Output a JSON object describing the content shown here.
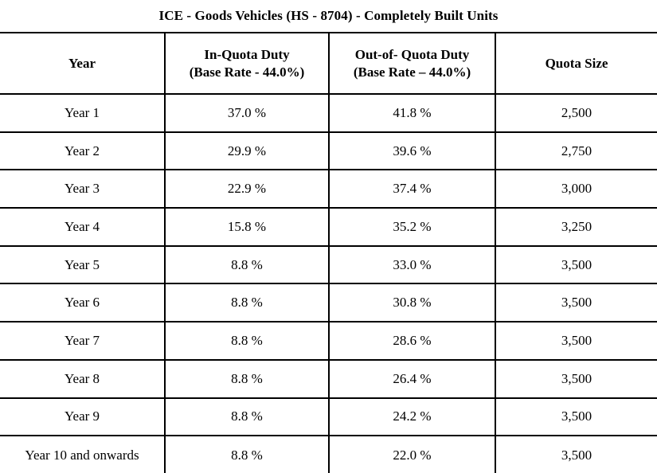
{
  "title": "ICE - Goods Vehicles (HS - 8704) - Completely Built Units",
  "table": {
    "columns": [
      {
        "label": "Year",
        "sublabel": ""
      },
      {
        "label": "In-Quota Duty",
        "sublabel": "(Base Rate - 44.0%)"
      },
      {
        "label": "Out-of- Quota Duty",
        "sublabel": "(Base Rate – 44.0%)"
      },
      {
        "label": "Quota Size",
        "sublabel": ""
      }
    ],
    "rows": [
      {
        "year": "Year 1",
        "in_quota_duty": "37.0 %",
        "out_of_quota_duty": "41.8 %",
        "quota_size": "2,500"
      },
      {
        "year": "Year 2",
        "in_quota_duty": "29.9 %",
        "out_of_quota_duty": "39.6 %",
        "quota_size": "2,750"
      },
      {
        "year": "Year 3",
        "in_quota_duty": "22.9 %",
        "out_of_quota_duty": "37.4 %",
        "quota_size": "3,000"
      },
      {
        "year": "Year 4",
        "in_quota_duty": "15.8 %",
        "out_of_quota_duty": "35.2 %",
        "quota_size": "3,250"
      },
      {
        "year": "Year 5",
        "in_quota_duty": "8.8 %",
        "out_of_quota_duty": "33.0 %",
        "quota_size": "3,500"
      },
      {
        "year": "Year 6",
        "in_quota_duty": "8.8 %",
        "out_of_quota_duty": "30.8 %",
        "quota_size": "3,500"
      },
      {
        "year": "Year 7",
        "in_quota_duty": "8.8 %",
        "out_of_quota_duty": "28.6 %",
        "quota_size": "3,500"
      },
      {
        "year": "Year 8",
        "in_quota_duty": "8.8 %",
        "out_of_quota_duty": "26.4 %",
        "quota_size": "3,500"
      },
      {
        "year": "Year 9",
        "in_quota_duty": "8.8 %",
        "out_of_quota_duty": "24.2 %",
        "quota_size": "3,500"
      },
      {
        "year": "Year 10 and onwards",
        "in_quota_duty": "8.8 %",
        "out_of_quota_duty": "22.0 %",
        "quota_size": "3,500"
      }
    ]
  },
  "colors": {
    "border": "#000000",
    "text": "#000000",
    "background": "#ffffff"
  }
}
